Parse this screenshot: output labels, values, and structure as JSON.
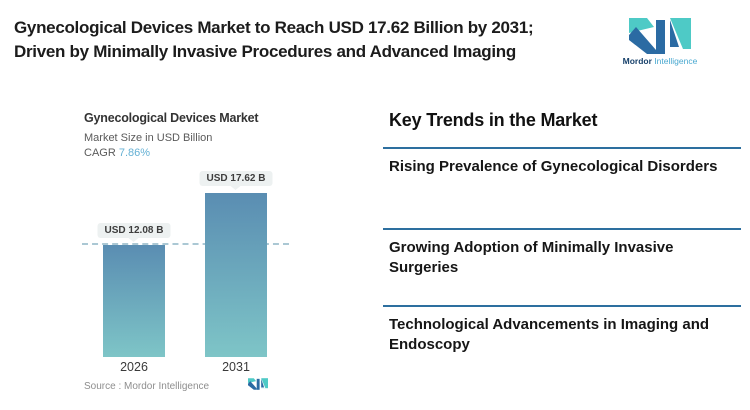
{
  "header": {
    "title_line1": "Gynecological Devices Market to Reach USD 17.62 Billion by 2031;",
    "title_line2": "Driven by Minimally Invasive Procedures and Advanced Imaging",
    "brand": {
      "name_primary": "Mordor",
      "name_secondary": "Intelligence"
    }
  },
  "chart": {
    "title": "Gynecological Devices Market",
    "subtitle": "Market Size in USD Billion",
    "cagr_label": "CAGR",
    "cagr_value": "7.86%",
    "bars": [
      {
        "year": "2026",
        "value_label": "USD 12.08 B"
      },
      {
        "year": "2031",
        "value_label": "USD 17.62 B"
      }
    ],
    "source": "Source :  Mordor Intelligence"
  },
  "chart_data": {
    "type": "bar",
    "title": "Gynecological Devices Market",
    "ylabel": "Market Size in USD Billion",
    "categories": [
      "2026",
      "2031"
    ],
    "values": [
      12.08,
      17.62
    ],
    "value_labels": [
      "USD 12.08 B",
      "USD 17.62 B"
    ],
    "unit": "USD Billion",
    "cagr_percent": 7.86,
    "ylim": [
      0,
      18
    ],
    "grid": false,
    "legend": false,
    "reference_line_value": 12.08,
    "source": "Mordor Intelligence"
  },
  "trends": {
    "heading": "Key Trends in the Market",
    "items": [
      "Rising Prevalence of Gynecological Disorders",
      "Growing Adoption of Minimally Invasive Surgeries",
      "Technological Advancements in Imaging and Endoscopy"
    ]
  },
  "colors": {
    "separator_blue": "#2d6f9f",
    "bar_gradient_top": "#5a8db2",
    "bar_gradient_bottom": "#7ec5c7",
    "cagr_value_blue": "#64b0d4",
    "logo_teal": "#4ecac6",
    "logo_navy": "#2b6ba3"
  }
}
